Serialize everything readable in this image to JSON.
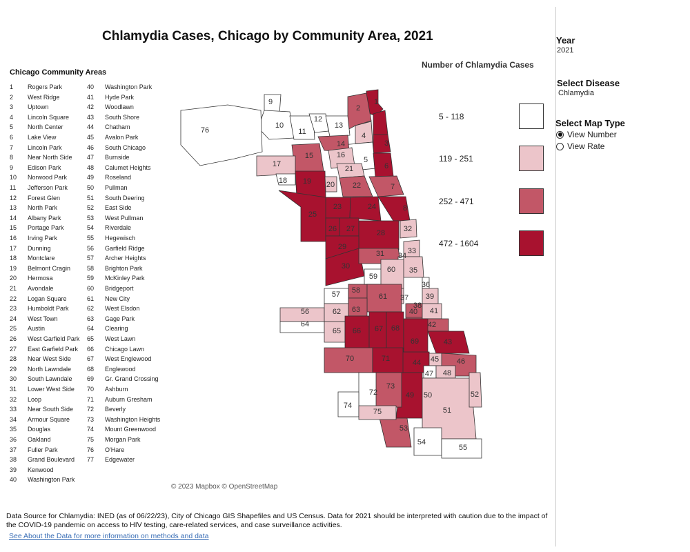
{
  "title": "Chlamydia Cases, Chicago by Community Area, 2021",
  "area_list": {
    "heading": "Chicago Community Areas",
    "col1": [
      {
        "num": "1",
        "name": "Rogers Park"
      },
      {
        "num": "2",
        "name": "West Ridge"
      },
      {
        "num": "3",
        "name": "Uptown"
      },
      {
        "num": "4",
        "name": "Lincoln Square"
      },
      {
        "num": "5",
        "name": "North Center"
      },
      {
        "num": "6",
        "name": "Lake View"
      },
      {
        "num": "7",
        "name": "Lincoln Park"
      },
      {
        "num": "8",
        "name": "Near North Side"
      },
      {
        "num": "9",
        "name": "Edison Park"
      },
      {
        "num": "10",
        "name": "Norwood Park"
      },
      {
        "num": "11",
        "name": "Jefferson Park"
      },
      {
        "num": "12",
        "name": "Forest Glen"
      },
      {
        "num": "13",
        "name": "North Park"
      },
      {
        "num": "14",
        "name": "Albany Park"
      },
      {
        "num": "15",
        "name": "Portage Park"
      },
      {
        "num": "16",
        "name": "Irving Park"
      },
      {
        "num": "17",
        "name": "Dunning"
      },
      {
        "num": "18",
        "name": "Montclare"
      },
      {
        "num": "19",
        "name": "Belmont Cragin"
      },
      {
        "num": "20",
        "name": "Hermosa"
      },
      {
        "num": "21",
        "name": "Avondale"
      },
      {
        "num": "22",
        "name": "Logan Square"
      },
      {
        "num": "23",
        "name": "Humboldt Park"
      },
      {
        "num": "24",
        "name": "West Town"
      },
      {
        "num": "25",
        "name": "Austin"
      },
      {
        "num": "26",
        "name": "West Garfield Park"
      },
      {
        "num": "27",
        "name": "East Garfield Park"
      },
      {
        "num": "28",
        "name": "Near West Side"
      },
      {
        "num": "29",
        "name": "North Lawndale"
      },
      {
        "num": "30",
        "name": "South Lawndale"
      },
      {
        "num": "31",
        "name": "Lower West Side"
      },
      {
        "num": "32",
        "name": "Loop"
      },
      {
        "num": "33",
        "name": "Near South Side"
      },
      {
        "num": "34",
        "name": "Armour Square"
      },
      {
        "num": "35",
        "name": "Douglas"
      },
      {
        "num": "36",
        "name": "Oakland"
      },
      {
        "num": "37",
        "name": "Fuller Park"
      },
      {
        "num": "38",
        "name": "Grand Boulevard"
      },
      {
        "num": "39",
        "name": "Kenwood"
      },
      {
        "num": "40",
        "name": "Washington Park"
      }
    ],
    "col2": [
      {
        "num": "40",
        "name": "Washington Park"
      },
      {
        "num": "41",
        "name": "Hyde Park"
      },
      {
        "num": "42",
        "name": "Woodlawn"
      },
      {
        "num": "43",
        "name": "South Shore"
      },
      {
        "num": "44",
        "name": "Chatham"
      },
      {
        "num": "45",
        "name": "Avalon Park"
      },
      {
        "num": "46",
        "name": "South Chicago"
      },
      {
        "num": "47",
        "name": "Burnside"
      },
      {
        "num": "48",
        "name": "Calumet Heights"
      },
      {
        "num": "49",
        "name": "Roseland"
      },
      {
        "num": "50",
        "name": "Pullman"
      },
      {
        "num": "51",
        "name": "South Deering"
      },
      {
        "num": "52",
        "name": "East Side"
      },
      {
        "num": "53",
        "name": "West Pullman"
      },
      {
        "num": "54",
        "name": "Riverdale"
      },
      {
        "num": "55",
        "name": "Hegewisch"
      },
      {
        "num": "56",
        "name": "Garfield Ridge"
      },
      {
        "num": "57",
        "name": "Archer Heights"
      },
      {
        "num": "58",
        "name": "Brighton Park"
      },
      {
        "num": "59",
        "name": "McKinley Park"
      },
      {
        "num": "60",
        "name": "Bridgeport"
      },
      {
        "num": "61",
        "name": "New City"
      },
      {
        "num": "62",
        "name": "West Elsdon"
      },
      {
        "num": "63",
        "name": "Gage Park"
      },
      {
        "num": "64",
        "name": "Clearing"
      },
      {
        "num": "65",
        "name": "West Lawn"
      },
      {
        "num": "66",
        "name": "Chicago Lawn"
      },
      {
        "num": "67",
        "name": "West Englewood"
      },
      {
        "num": "68",
        "name": "Englewood"
      },
      {
        "num": "69",
        "name": "Gr. Grand Crossing"
      },
      {
        "num": "70",
        "name": "Ashburn"
      },
      {
        "num": "71",
        "name": "Auburn Gresham"
      },
      {
        "num": "72",
        "name": "Beverly"
      },
      {
        "num": "73",
        "name": "Washington Heights"
      },
      {
        "num": "74",
        "name": "Mount Greenwood"
      },
      {
        "num": "75",
        "name": "Morgan Park"
      },
      {
        "num": "76",
        "name": "O'Hare"
      },
      {
        "num": "77",
        "name": "Edgewater"
      }
    ]
  },
  "legend": {
    "title": "Number of Chlamydia Cases",
    "bins": [
      {
        "label": "5 - 118",
        "color": "#ffffff"
      },
      {
        "label": "119 - 251",
        "color": "#ecc5ca"
      },
      {
        "label": "252 - 471",
        "color": "#c25767"
      },
      {
        "label": "472 - 1604",
        "color": "#a8122f"
      }
    ]
  },
  "map_areas": [
    {
      "num": "1",
      "bin": 3
    },
    {
      "num": "2",
      "bin": 2
    },
    {
      "num": "3",
      "bin": 3
    },
    {
      "num": "4",
      "bin": 1
    },
    {
      "num": "5",
      "bin": 0
    },
    {
      "num": "6",
      "bin": 3
    },
    {
      "num": "7",
      "bin": 2
    },
    {
      "num": "8",
      "bin": 3
    },
    {
      "num": "9",
      "bin": 0
    },
    {
      "num": "10",
      "bin": 0
    },
    {
      "num": "11",
      "bin": 0
    },
    {
      "num": "12",
      "bin": 0
    },
    {
      "num": "13",
      "bin": 0
    },
    {
      "num": "14",
      "bin": 2
    },
    {
      "num": "15",
      "bin": 2
    },
    {
      "num": "16",
      "bin": 1
    },
    {
      "num": "17",
      "bin": 1
    },
    {
      "num": "18",
      "bin": 0
    },
    {
      "num": "19",
      "bin": 3
    },
    {
      "num": "20",
      "bin": 1
    },
    {
      "num": "21",
      "bin": 1
    },
    {
      "num": "22",
      "bin": 2
    },
    {
      "num": "23",
      "bin": 3
    },
    {
      "num": "24",
      "bin": 3
    },
    {
      "num": "25",
      "bin": 3
    },
    {
      "num": "26",
      "bin": 3
    },
    {
      "num": "27",
      "bin": 3
    },
    {
      "num": "28",
      "bin": 3
    },
    {
      "num": "29",
      "bin": 3
    },
    {
      "num": "30",
      "bin": 3
    },
    {
      "num": "31",
      "bin": 2
    },
    {
      "num": "32",
      "bin": 1
    },
    {
      "num": "33",
      "bin": 1
    },
    {
      "num": "34",
      "bin": 0
    },
    {
      "num": "35",
      "bin": 1
    },
    {
      "num": "36",
      "bin": 0
    },
    {
      "num": "37",
      "bin": 1
    },
    {
      "num": "38",
      "bin": 2
    },
    {
      "num": "39",
      "bin": 1
    },
    {
      "num": "40",
      "bin": 2
    },
    {
      "num": "41",
      "bin": 1
    },
    {
      "num": "42",
      "bin": 2
    },
    {
      "num": "43",
      "bin": 3
    },
    {
      "num": "44",
      "bin": 3
    },
    {
      "num": "45",
      "bin": 1
    },
    {
      "num": "46",
      "bin": 2
    },
    {
      "num": "47",
      "bin": 0
    },
    {
      "num": "48",
      "bin": 1
    },
    {
      "num": "49",
      "bin": 3
    },
    {
      "num": "50",
      "bin": 0
    },
    {
      "num": "51",
      "bin": 1
    },
    {
      "num": "52",
      "bin": 1
    },
    {
      "num": "53",
      "bin": 2
    },
    {
      "num": "54",
      "bin": 0
    },
    {
      "num": "55",
      "bin": 0
    },
    {
      "num": "56",
      "bin": 1
    },
    {
      "num": "57",
      "bin": 0
    },
    {
      "num": "58",
      "bin": 2
    },
    {
      "num": "59",
      "bin": 0
    },
    {
      "num": "60",
      "bin": 1
    },
    {
      "num": "61",
      "bin": 2
    },
    {
      "num": "62",
      "bin": 1
    },
    {
      "num": "63",
      "bin": 2
    },
    {
      "num": "64",
      "bin": 0
    },
    {
      "num": "65",
      "bin": 1
    },
    {
      "num": "66",
      "bin": 3
    },
    {
      "num": "67",
      "bin": 3
    },
    {
      "num": "68",
      "bin": 3
    },
    {
      "num": "69",
      "bin": 3
    },
    {
      "num": "70",
      "bin": 2
    },
    {
      "num": "71",
      "bin": 3
    },
    {
      "num": "72",
      "bin": 0
    },
    {
      "num": "73",
      "bin": 2
    },
    {
      "num": "74",
      "bin": 0
    },
    {
      "num": "75",
      "bin": 1
    },
    {
      "num": "76",
      "bin": 0
    },
    {
      "num": "77",
      "bin": 3
    }
  ],
  "attribution": "© 2023 Mapbox © OpenStreetMap",
  "sidebar": {
    "year_label": "Year",
    "year_value": "2021",
    "disease_label": "Select Disease",
    "disease_value": "Chlamydia",
    "maptype_label": "Select Map Type",
    "options": [
      {
        "label": "View Number",
        "selected": true
      },
      {
        "label": "View Rate",
        "selected": false
      }
    ]
  },
  "footer": {
    "text": "Data Source for Chlamydia: INED (as of 06/22/23), City of Chicago GIS Shapefiles and US Census. Data for 2021 should be interpreted with caution due to the impact of the COVID-19 pandemic on access to HIV testing, care-related services, and case surveillance activities.",
    "link": "See About the Data for more information on methods and data"
  }
}
